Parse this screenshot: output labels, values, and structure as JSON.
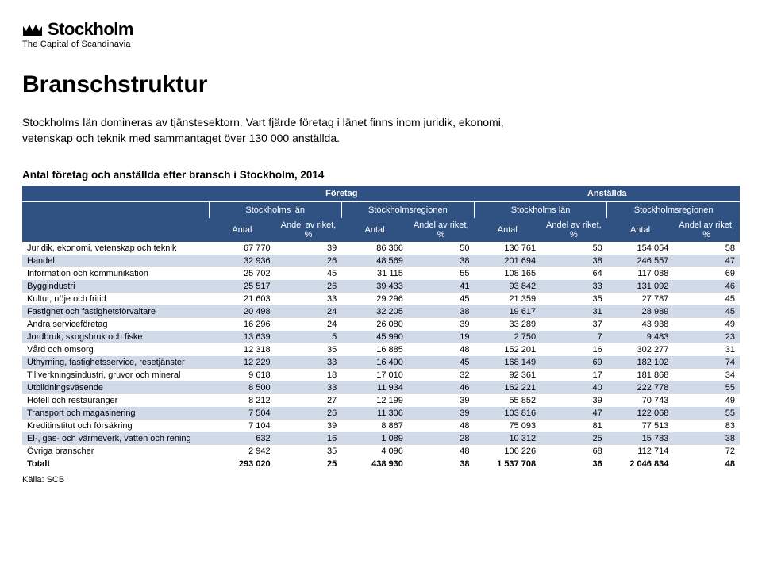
{
  "logo": {
    "main": "Stockholm",
    "sub": "The Capital of Scandinavia"
  },
  "title": "Branschstruktur",
  "intro": "Stockholms län domineras av tjänstesektorn. Vart fjärde företag i länet finns inom juridik, ekonomi, vetenskap och teknik med sammantaget över 130 000 anställda.",
  "table_caption": "Antal företag och anställda efter bransch i Stockholm, 2014",
  "source": "Källa: SCB",
  "colors": {
    "header_bg": "#2f5283",
    "header_fg": "#ffffff",
    "row_even_bg": "#d0dae8",
    "row_odd_bg": "#ffffff",
    "text": "#000000"
  },
  "font": {
    "family": "Arial",
    "title_size_pt": 22,
    "body_size_pt": 10,
    "table_size_pt": 8
  },
  "header": {
    "top": {
      "foretag": "Företag",
      "anstallda": "Anställda"
    },
    "mid": {
      "sthlm_lan": "Stockholms län",
      "sthlm_region": "Stockholmsregionen"
    },
    "sub": {
      "antal": "Antal",
      "andel": "Andel av riket, %"
    }
  },
  "rows": [
    {
      "label": "Juridik, ekonomi, vetenskap och teknik",
      "v": [
        "67 770",
        "39",
        "86 366",
        "50",
        "130 761",
        "50",
        "154 054",
        "58"
      ],
      "shade": "odd"
    },
    {
      "label": "Handel",
      "v": [
        "32 936",
        "26",
        "48 569",
        "38",
        "201 694",
        "38",
        "246 557",
        "47"
      ],
      "shade": "even"
    },
    {
      "label": "Information och kommunikation",
      "v": [
        "25 702",
        "45",
        "31 115",
        "55",
        "108 165",
        "64",
        "117 088",
        "69"
      ],
      "shade": "odd"
    },
    {
      "label": "Byggindustri",
      "v": [
        "25 517",
        "26",
        "39 433",
        "41",
        "93 842",
        "33",
        "131 092",
        "46"
      ],
      "shade": "even"
    },
    {
      "label": "Kultur, nöje och fritid",
      "v": [
        "21 603",
        "33",
        "29 296",
        "45",
        "21 359",
        "35",
        "27 787",
        "45"
      ],
      "shade": "odd"
    },
    {
      "label": "Fastighet och fastighetsförvaltare",
      "v": [
        "20 498",
        "24",
        "32 205",
        "38",
        "19 617",
        "31",
        "28 989",
        "45"
      ],
      "shade": "even"
    },
    {
      "label": "Andra serviceföretag",
      "v": [
        "16 296",
        "24",
        "26 080",
        "39",
        "33 289",
        "37",
        "43 938",
        "49"
      ],
      "shade": "odd"
    },
    {
      "label": "Jordbruk, skogsbruk och fiske",
      "v": [
        "13 639",
        "5",
        "45 990",
        "19",
        "2 750",
        "7",
        "9 483",
        "23"
      ],
      "shade": "even"
    },
    {
      "label": "Vård och omsorg",
      "v": [
        "12 318",
        "35",
        "16 885",
        "48",
        "152 201",
        "16",
        "302 277",
        "31"
      ],
      "shade": "odd"
    },
    {
      "label": "Uthyrning, fastighetsservice, resetjänster",
      "v": [
        "12 229",
        "33",
        "16 490",
        "45",
        "168 149",
        "69",
        "182 102",
        "74"
      ],
      "shade": "even"
    },
    {
      "label": "Tillverkningsindustri, gruvor och mineral",
      "v": [
        "9 618",
        "18",
        "17 010",
        "32",
        "92 361",
        "17",
        "181 868",
        "34"
      ],
      "shade": "odd"
    },
    {
      "label": "Utbildningsväsende",
      "v": [
        "8 500",
        "33",
        "11 934",
        "46",
        "162 221",
        "40",
        "222 778",
        "55"
      ],
      "shade": "even"
    },
    {
      "label": "Hotell och restauranger",
      "v": [
        "8 212",
        "27",
        "12 199",
        "39",
        "55 852",
        "39",
        "70 743",
        "49"
      ],
      "shade": "odd"
    },
    {
      "label": "Transport och magasinering",
      "v": [
        "7 504",
        "26",
        "11 306",
        "39",
        "103 816",
        "47",
        "122 068",
        "55"
      ],
      "shade": "even"
    },
    {
      "label": "Kreditinstitut och försäkring",
      "v": [
        "7 104",
        "39",
        "8 867",
        "48",
        "75 093",
        "81",
        "77 513",
        "83"
      ],
      "shade": "odd"
    },
    {
      "label": "El-, gas- och värmeverk, vatten och rening",
      "v": [
        "632",
        "16",
        "1 089",
        "28",
        "10 312",
        "25",
        "15 783",
        "38"
      ],
      "shade": "even"
    },
    {
      "label": "Övriga branscher",
      "v": [
        "2 942",
        "35",
        "4 096",
        "48",
        "106 226",
        "68",
        "112 714",
        "72"
      ],
      "shade": "odd"
    }
  ],
  "total": {
    "label": "Totalt",
    "v": [
      "293 020",
      "25",
      "438 930",
      "38",
      "1 537 708",
      "36",
      "2 046 834",
      "48"
    ]
  },
  "columns": {
    "widths_pct": [
      26,
      9.25,
      9.25,
      9.25,
      9.25,
      9.25,
      9.25,
      9.25,
      9.25
    ],
    "align": [
      "left",
      "right",
      "right",
      "right",
      "right",
      "right",
      "right",
      "right",
      "right"
    ]
  }
}
